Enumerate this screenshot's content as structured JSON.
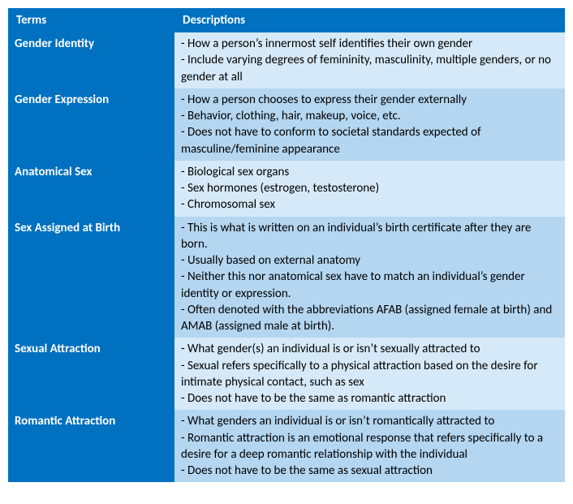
{
  "colors": {
    "header_bg": "#0070c0",
    "term_bg": "#0070c0",
    "desc_bg_odd": "#d6e9f8",
    "desc_bg_even": "#b4d6f0",
    "header_text": "#ffffff",
    "body_text": "#000000"
  },
  "columns": {
    "terms": "Terms",
    "descriptions": "Descriptions"
  },
  "rows": [
    {
      "term": "Gender Identity",
      "desc": "- How a person’s innermost self identifies their own gender\n- Include varying degrees of femininity, masculinity, multiple genders, or no gender at all"
    },
    {
      "term": "Gender Expression",
      "desc": "- How a person chooses to express their gender externally\n- Behavior, clothing, hair, makeup, voice, etc.\n- Does not have to conform to societal standards expected of masculine/feminine appearance"
    },
    {
      "term": "Anatomical Sex",
      "desc": "- Biological sex organs\n- Sex hormones (estrogen, testosterone)\n- Chromosomal sex"
    },
    {
      "term": "Sex Assigned at Birth",
      "desc": "- This is what is written on an individual’s birth certificate after they are born.\n- Usually based on external anatomy\n- Neither this nor anatomical sex have to match an individual’s gender identity or expression.\n- Often denoted with the abbreviations AFAB (assigned female at birth) and AMAB (assigned male at birth)."
    },
    {
      "term": "Sexual Attraction",
      "desc": "- What gender(s) an individual is or isn’t sexually attracted to\n- Sexual refers specifically to a physical attraction based on the desire for intimate physical contact, such as sex\n- Does not have to be the same as romantic attraction"
    },
    {
      "term": "Romantic Attraction",
      "desc": "- What genders an individual is or isn’t romantically attracted to\n- Romantic attraction is an emotional response that refers specifically to a desire for a deep romantic relationship with the individual\n- Does not have to be the same as sexual attraction"
    }
  ]
}
